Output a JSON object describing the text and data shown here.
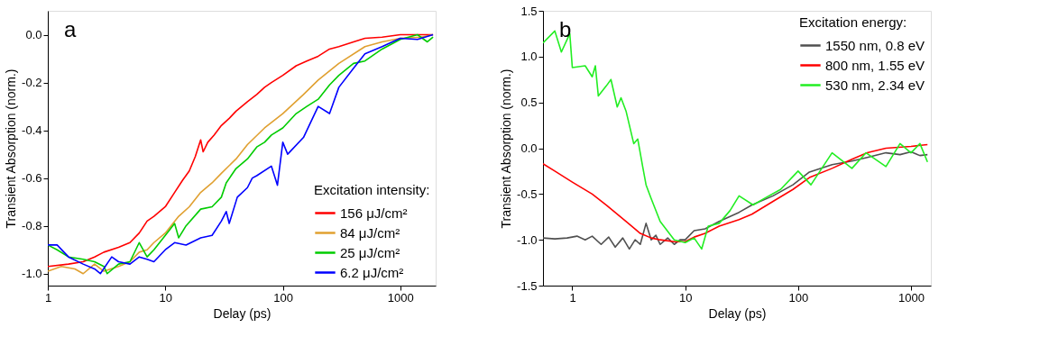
{
  "chart_data": [
    {
      "type": "line",
      "xlabel": "Delay (ps)",
      "ylabel": "Transient Absorption (norm.)",
      "annotations": [
        "a"
      ],
      "legend_title": "Excitation intensity:",
      "legend": "bottom right",
      "grid": false,
      "log": "x",
      "xlim": [
        1,
        2000
      ],
      "xticks": [
        1,
        10,
        100,
        1000
      ],
      "ylim": [
        -1.05,
        0.1
      ],
      "yticks": [
        {
          "value": 0,
          "label": "0.0"
        },
        {
          "value": -0.2,
          "label": "-0.2"
        },
        {
          "value": -0.4,
          "label": "-0.4"
        },
        {
          "value": -0.6,
          "label": "-0.6"
        },
        {
          "value": -0.8,
          "label": "-0.8"
        },
        {
          "value": -1.0,
          "label": "-1.0"
        }
      ],
      "series": [
        {
          "name": "156 μJ/cm²",
          "color": "#ff0000",
          "x": [
            1,
            1.5,
            2,
            2.5,
            3,
            4,
            5,
            6,
            7,
            8,
            10,
            12,
            14,
            16,
            18,
            20,
            21,
            23,
            26,
            30,
            35,
            40,
            50,
            60,
            70,
            80,
            100,
            130,
            160,
            200,
            250,
            300,
            400,
            500,
            700,
            1000,
            1500,
            1900
          ],
          "values": [
            -0.97,
            -0.96,
            -0.95,
            -0.93,
            -0.91,
            -0.89,
            -0.87,
            -0.83,
            -0.78,
            -0.76,
            -0.72,
            -0.66,
            -0.61,
            -0.57,
            -0.51,
            -0.44,
            -0.49,
            -0.45,
            -0.42,
            -0.38,
            -0.35,
            -0.32,
            -0.28,
            -0.25,
            -0.22,
            -0.2,
            -0.17,
            -0.13,
            -0.11,
            -0.09,
            -0.06,
            -0.05,
            -0.03,
            -0.015,
            -0.01,
            0,
            0,
            0
          ]
        },
        {
          "name": "84 μJ/cm²",
          "color": "#e0a030",
          "x": [
            1,
            1.3,
            1.7,
            2,
            2.5,
            3,
            4,
            5,
            6,
            7,
            8,
            10,
            13,
            16,
            20,
            25,
            30,
            40,
            50,
            70,
            100,
            150,
            200,
            300,
            500,
            700,
            1000,
            1500,
            1900
          ],
          "values": [
            -0.99,
            -0.97,
            -0.98,
            -1.0,
            -0.96,
            -0.99,
            -0.97,
            -0.95,
            -0.91,
            -0.9,
            -0.87,
            -0.83,
            -0.76,
            -0.72,
            -0.66,
            -0.62,
            -0.58,
            -0.52,
            -0.46,
            -0.39,
            -0.33,
            -0.25,
            -0.19,
            -0.12,
            -0.05,
            -0.03,
            -0.015,
            -0.01,
            0
          ]
        },
        {
          "name": "25 μJ/cm²",
          "color": "#00cc00",
          "x": [
            1,
            1.2,
            1.5,
            2,
            2.5,
            3,
            3.2,
            4,
            5,
            6,
            7,
            8,
            10,
            12,
            13,
            15,
            20,
            25,
            30,
            33,
            40,
            50,
            60,
            70,
            80,
            100,
            130,
            160,
            200,
            250,
            300,
            400,
            500,
            700,
            1000,
            1400,
            1700,
            1900
          ],
          "values": [
            -0.88,
            -0.9,
            -0.93,
            -0.94,
            -0.95,
            -0.97,
            -1.0,
            -0.96,
            -0.95,
            -0.87,
            -0.93,
            -0.9,
            -0.84,
            -0.79,
            -0.85,
            -0.8,
            -0.73,
            -0.72,
            -0.68,
            -0.62,
            -0.56,
            -0.52,
            -0.47,
            -0.45,
            -0.42,
            -0.39,
            -0.33,
            -0.3,
            -0.27,
            -0.21,
            -0.17,
            -0.12,
            -0.11,
            -0.06,
            -0.02,
            0,
            -0.03,
            -0.01
          ]
        },
        {
          "name": "6.2 μJ/cm²",
          "color": "#0000ff",
          "x": [
            1,
            1.2,
            1.5,
            2,
            2.5,
            2.8,
            3.5,
            4,
            5,
            6,
            7,
            8,
            10,
            12,
            15,
            20,
            25,
            30,
            33,
            35,
            41,
            50,
            55,
            60,
            80,
            90,
            100,
            110,
            150,
            200,
            250,
            300,
            400,
            500,
            700,
            1000,
            1400,
            1900
          ],
          "values": [
            -0.88,
            -0.88,
            -0.93,
            -0.96,
            -0.98,
            -1.0,
            -0.93,
            -0.95,
            -0.96,
            -0.93,
            -0.94,
            -0.95,
            -0.9,
            -0.87,
            -0.88,
            -0.85,
            -0.84,
            -0.78,
            -0.74,
            -0.79,
            -0.68,
            -0.64,
            -0.6,
            -0.59,
            -0.55,
            -0.63,
            -0.45,
            -0.5,
            -0.43,
            -0.3,
            -0.33,
            -0.22,
            -0.14,
            -0.08,
            -0.05,
            -0.015,
            -0.02,
            0
          ]
        }
      ]
    },
    {
      "type": "line",
      "xlabel": "Delay (ps)",
      "ylabel": "Transient Absorption (norm.)",
      "annotations": [
        "b"
      ],
      "legend_title": "Excitation energy:",
      "legend": "top right",
      "grid": false,
      "log": "x",
      "xlim": [
        0.55,
        1500
      ],
      "xticks": [
        1,
        10,
        100,
        1000
      ],
      "ylim": [
        -1.5,
        1.5
      ],
      "yticks": [
        {
          "value": 1.5,
          "label": "1.5"
        },
        {
          "value": 1.0,
          "label": "1.0"
        },
        {
          "value": 0.5,
          "label": "0.5"
        },
        {
          "value": 0,
          "label": "0.0"
        },
        {
          "value": -0.5,
          "label": "-0.5"
        },
        {
          "value": -1.0,
          "label": "-1.0"
        },
        {
          "value": -1.5,
          "label": "-1.5"
        }
      ],
      "series": [
        {
          "name": "1550 nm, 0.8 eV",
          "color": "#505050",
          "x": [
            0.55,
            0.7,
            0.9,
            1.1,
            1.3,
            1.5,
            1.8,
            2.1,
            2.4,
            2.8,
            3.2,
            3.6,
            4,
            4.5,
            5,
            5.5,
            6,
            7,
            8,
            9,
            10,
            12,
            15,
            20,
            30,
            39,
            60,
            90,
            126,
            200,
            300,
            410,
            600,
            800,
            1000,
            1200,
            1400
          ],
          "values": [
            -0.98,
            -0.99,
            -0.98,
            -0.96,
            -1.0,
            -0.96,
            -1.05,
            -0.97,
            -1.08,
            -0.98,
            -1.1,
            -1.0,
            -1.05,
            -0.82,
            -1.0,
            -0.95,
            -1.05,
            -0.98,
            -1.05,
            -1.0,
            -1.0,
            -0.9,
            -0.88,
            -0.8,
            -0.7,
            -0.62,
            -0.52,
            -0.4,
            -0.26,
            -0.18,
            -0.14,
            -0.1,
            -0.05,
            -0.07,
            -0.04,
            -0.08,
            -0.07
          ]
        },
        {
          "name": "800 nm, 1.55 eV",
          "color": "#ff0000",
          "x": [
            0.55,
            0.7,
            1,
            1.5,
            2,
            3,
            4,
            5,
            6,
            8,
            10,
            12,
            15,
            20,
            30,
            39,
            60,
            90,
            126,
            200,
            300,
            410,
            600,
            1000,
            1400
          ],
          "values": [
            -0.17,
            -0.25,
            -0.37,
            -0.5,
            -0.62,
            -0.8,
            -0.93,
            -0.98,
            -1.0,
            -1.02,
            -1.02,
            -0.97,
            -0.93,
            -0.85,
            -0.78,
            -0.72,
            -0.58,
            -0.45,
            -0.32,
            -0.22,
            -0.12,
            -0.05,
            0,
            0.02,
            0.04
          ]
        },
        {
          "name": "530 nm, 2.34 eV",
          "color": "#22ee22",
          "x": [
            0.55,
            0.7,
            0.8,
            0.95,
            1,
            1.3,
            1.5,
            1.6,
            1.7,
            2,
            2.2,
            2.5,
            2.7,
            3,
            3.5,
            3.8,
            4.2,
            4.5,
            5,
            6,
            8,
            10,
            12,
            14,
            16,
            20,
            25,
            30,
            40,
            50,
            70,
            100,
            130,
            200,
            300,
            400,
            600,
            800,
            1000,
            1200,
            1400
          ],
          "values": [
            1.15,
            1.28,
            1.05,
            1.25,
            0.88,
            0.9,
            0.78,
            0.9,
            0.57,
            0.68,
            0.75,
            0.45,
            0.55,
            0.4,
            0.05,
            0.1,
            -0.2,
            -0.4,
            -0.55,
            -0.8,
            -1.0,
            -1.03,
            -0.98,
            -1.1,
            -0.85,
            -0.82,
            -0.68,
            -0.52,
            -0.62,
            -0.55,
            -0.45,
            -0.25,
            -0.4,
            -0.05,
            -0.22,
            -0.05,
            -0.2,
            0.05,
            -0.05,
            0.05,
            -0.15
          ]
        }
      ]
    }
  ]
}
